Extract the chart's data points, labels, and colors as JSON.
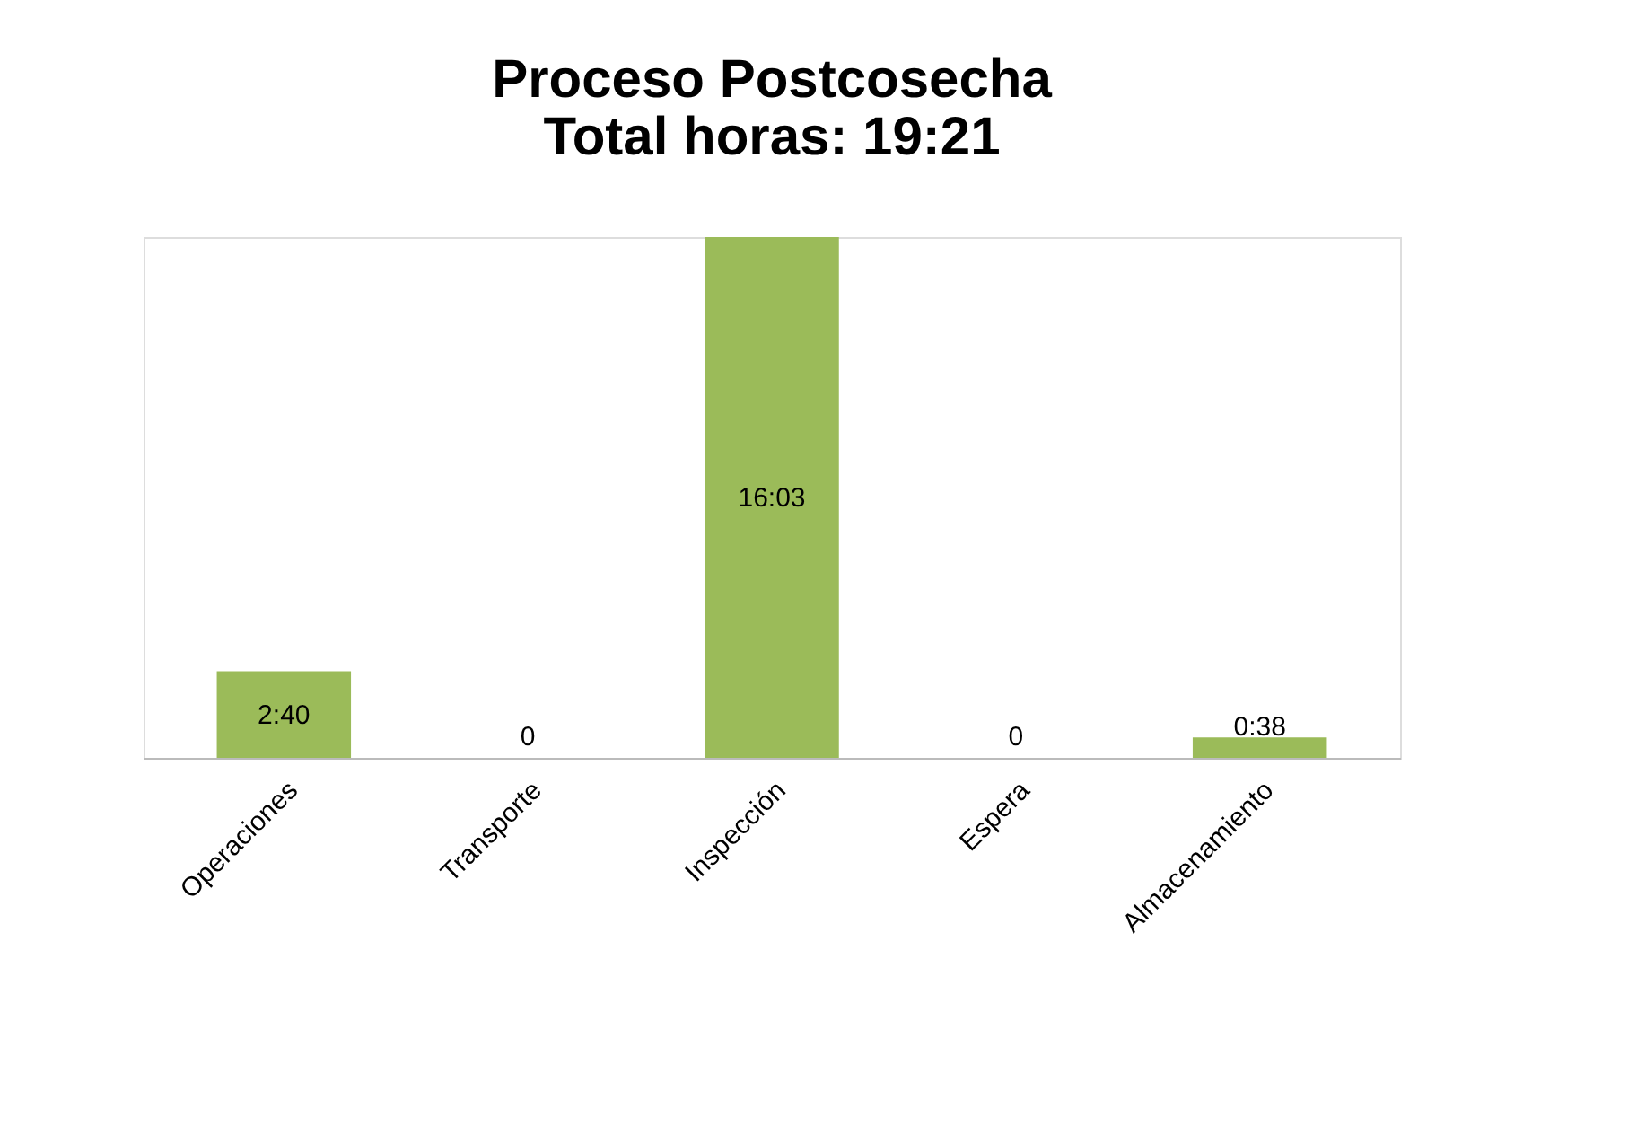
{
  "chart_data": {
    "type": "bar",
    "title": [
      "Proceso Postcosecha",
      "Total horas: 19:21"
    ],
    "categories": [
      "Operaciones",
      "Transporte",
      "Inspección",
      "Espera",
      "Almacenamiento"
    ],
    "values": [
      2.667,
      0,
      16.05,
      0,
      0.633
    ],
    "value_labels": [
      "2:40",
      "0",
      "16:03",
      "0",
      "0:38"
    ],
    "color": "#9bbb59"
  }
}
